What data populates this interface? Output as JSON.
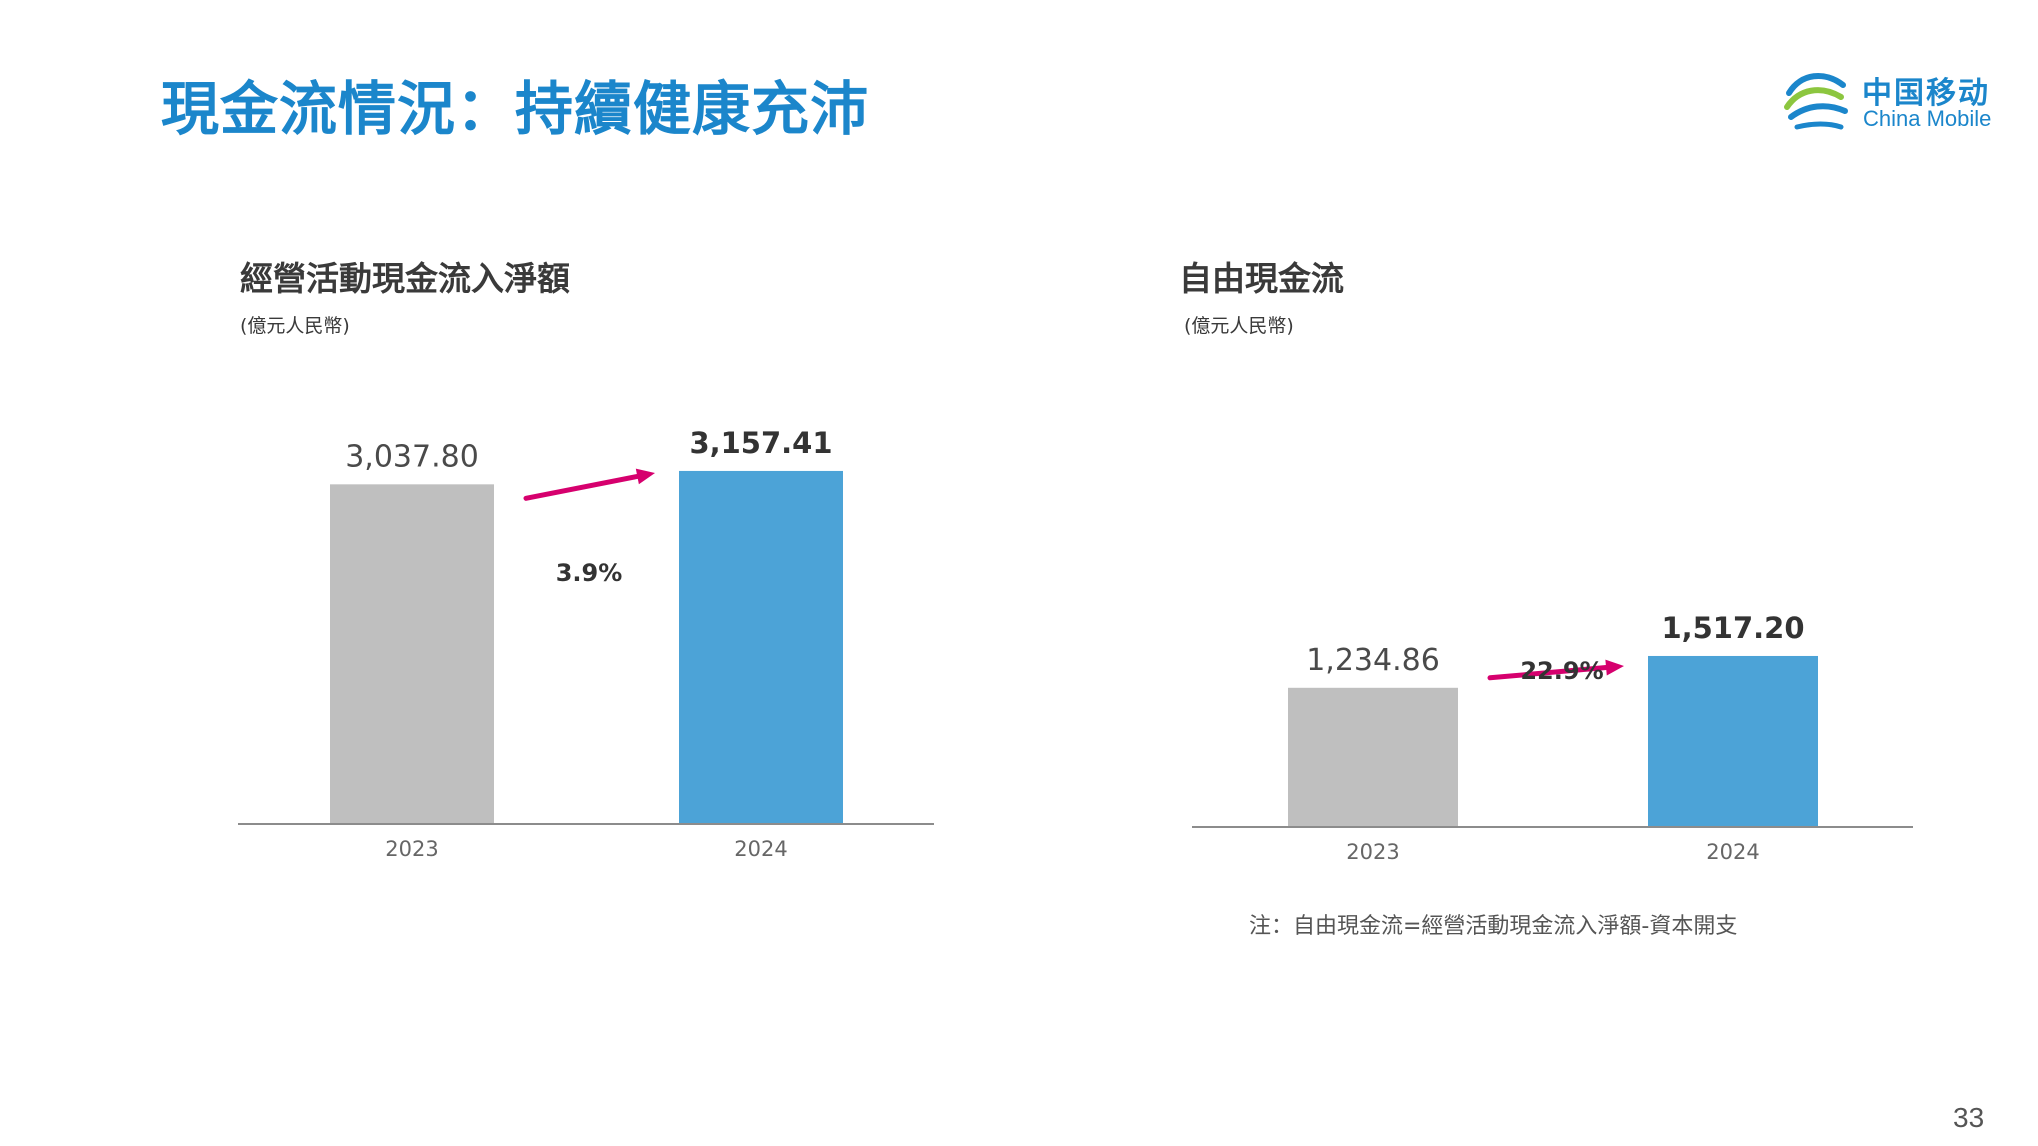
{
  "title": "現金流情況：持續健康充沛",
  "logo": {
    "cn": "中国移动",
    "en": "China Mobile"
  },
  "colors": {
    "title": "#1b86cb",
    "bar_2023": "#bfbfbf",
    "bar_2024": "#4ca3d7",
    "arrow": "#d6006e"
  },
  "chart_data": [
    {
      "type": "bar",
      "title": "經營活動現金流入淨額",
      "unit": "(億元人民幣)",
      "categories": [
        "2023",
        "2024"
      ],
      "values": [
        3037.8,
        3157.41
      ],
      "value_labels": [
        "3,037.80",
        "3,157.41"
      ],
      "growth": "3.9%",
      "ylim": [
        0,
        3300
      ],
      "grid": false,
      "legend": "none"
    },
    {
      "type": "bar",
      "title": "自由現金流",
      "unit": "(億元人民幣)",
      "categories": [
        "2023",
        "2024"
      ],
      "values": [
        1234.86,
        1517.2
      ],
      "value_labels": [
        "1,234.86",
        "1,517.20"
      ],
      "growth": "22.9%",
      "ylim": [
        0,
        3300
      ],
      "grid": false,
      "legend": "none"
    }
  ],
  "note": "注：自由現金流=經營活動現金流入淨額-資本開支",
  "page_number": "33"
}
